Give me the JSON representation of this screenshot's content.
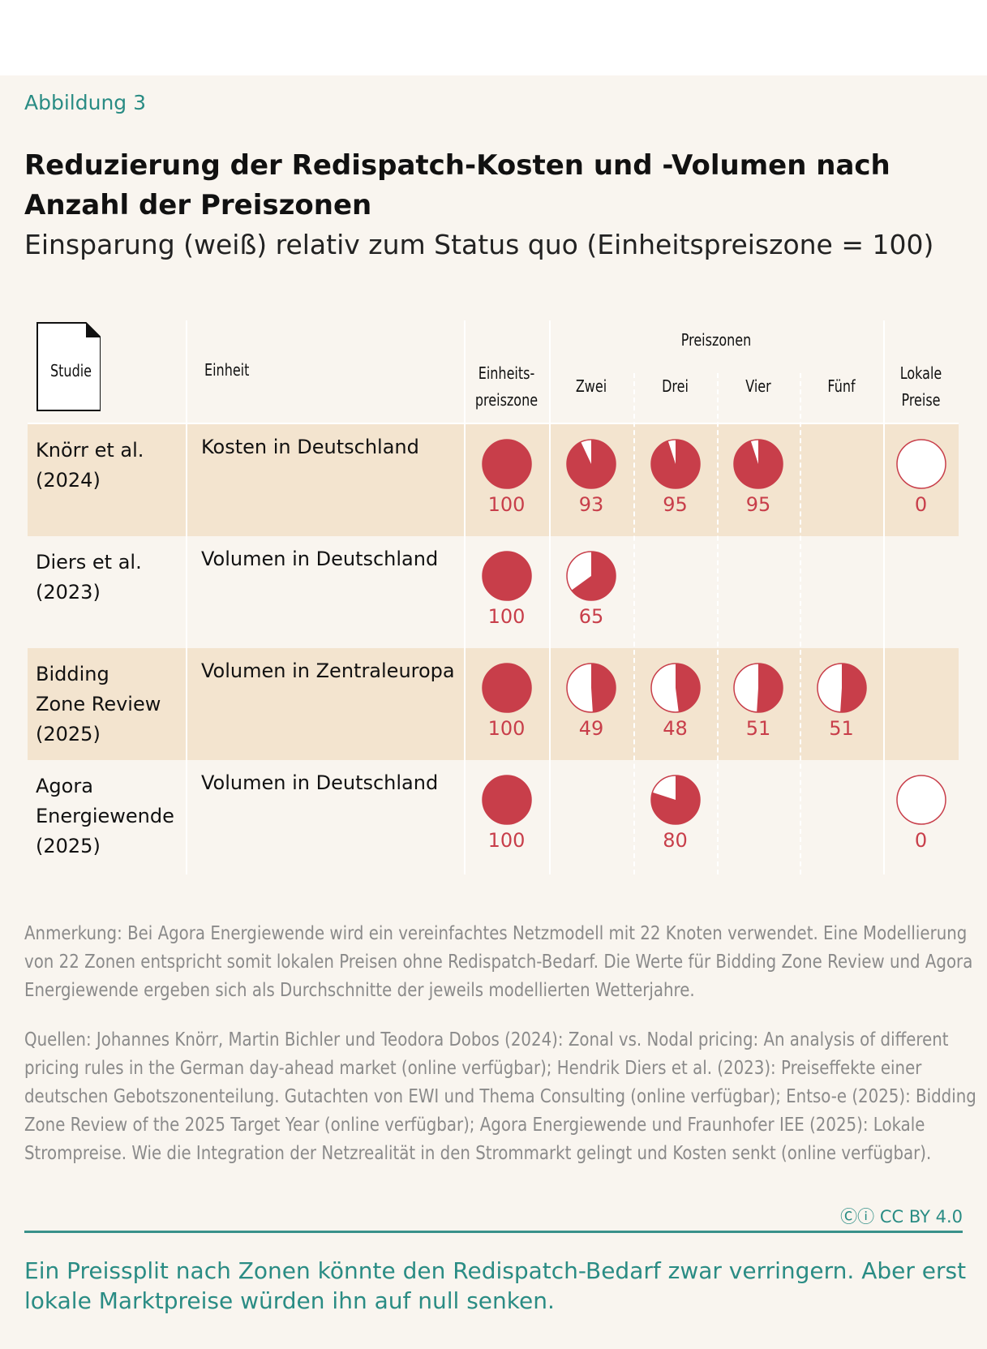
{
  "figure_label": "Abbildung 3",
  "title": "Reduzierung der Redispatch-Kosten und -Volumen nach Anzahl der Preiszonen",
  "subtitle": "Einsparung (weiß) relativ zum Status quo (Einheitspreiszone = 100)",
  "colors": {
    "accent": "#2a8c84",
    "pie": "#c83e4a",
    "band": "#f3e4cf",
    "background": "#f9f5ef"
  },
  "chart_data": {
    "type": "table",
    "header": {
      "study": "Studie",
      "unit": "Einheit",
      "single": "Einheits-\npreiszone",
      "group": "Preiszonen",
      "zones": [
        "Zwei",
        "Drei",
        "Vier",
        "Fünf"
      ],
      "local": "Lokale\nPreise"
    },
    "columns": [
      "Einheitspreiszone",
      "Zwei",
      "Drei",
      "Vier",
      "Fünf",
      "Lokale Preise"
    ],
    "rows": [
      {
        "study": "Knörr et al.\n(2024)",
        "unit": "Kosten in Deutschland",
        "values": [
          100,
          93,
          95,
          95,
          null,
          0
        ]
      },
      {
        "study": "Diers et al.\n(2023)",
        "unit": "Volumen in Deutschland",
        "values": [
          100,
          65,
          null,
          null,
          null,
          null
        ]
      },
      {
        "study": "Bidding\nZone Review\n(2025)",
        "unit": "Volumen in Zentraleuropa",
        "values": [
          100,
          49,
          48,
          51,
          51,
          null
        ]
      },
      {
        "study": "Agora\nEnergiewende\n(2025)",
        "unit": "Volumen in Deutschland",
        "values": [
          100,
          null,
          80,
          null,
          null,
          0
        ]
      }
    ]
  },
  "note": "Anmerkung: Bei Agora Energiewende wird ein vereinfachtes Netzmodell mit 22 Knoten verwendet. Eine Modellierung von 22 Zonen entspricht somit lokalen Preisen ohne Redispatch-Bedarf. Die Werte für Bidding Zone Review und Agora Energiewende ergeben sich als Durchschnitte der jeweils modellierten Wetterjahre.",
  "sources": "Quellen: Johannes Knörr, Martin Bichler und Teodora Dobos (2024): Zonal vs. Nodal pricing: An analysis of different pricing rules in the German day-ahead market (online verfügbar); Hendrik Diers et al. (2023): Preiseffekte einer deutschen Gebotszonenteilung. Gutachten von EWI und Thema Consulting (online verfügbar); Entso-e (2025): Bidding Zone Review of the 2025 Target Year (online verfügbar); Agora Energiewende und Fraunhofer IEE (2025): Lokale Strompreise. Wie die Integration der Netzrealität in den Strommarkt gelingt und Kosten senkt (online verfügbar).",
  "license": "CC BY 4.0",
  "takeaway": "Ein Preissplit nach Zonen könnte den Redispatch-Bedarf zwar verringern. Aber erst lokale Marktpreise würden ihn auf null senken."
}
